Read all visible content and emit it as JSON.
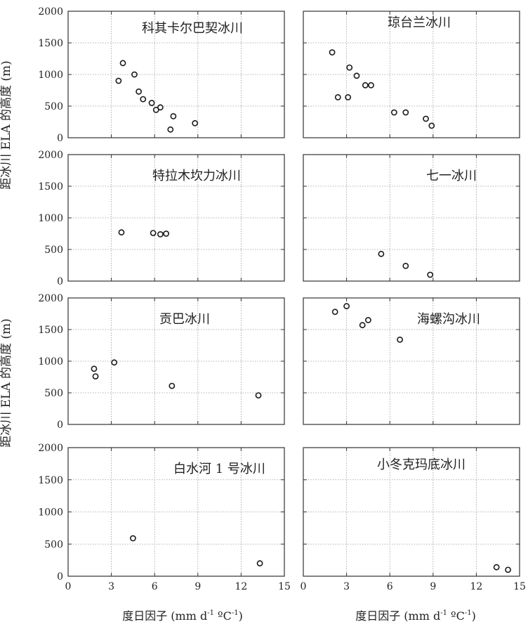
{
  "chart_data": {
    "type": "scatter",
    "ylabel": "距冰川 ELA 的高度 (m)",
    "xlabel": "度日因子 (mm d-1 ºC-1)",
    "xlabel_parts": [
      "度日因子 (mm d",
      "-1",
      " ºC",
      "-1",
      ")"
    ],
    "xlim_left": [
      0,
      15
    ],
    "xlim_right": [
      0,
      15
    ],
    "xticks_left": [
      0,
      3,
      6,
      9,
      12,
      15
    ],
    "xticks_right": [
      0,
      3,
      6,
      9,
      12,
      15
    ],
    "xtick_labels_left": [
      "0",
      "3",
      "6",
      "9",
      "12",
      "15"
    ],
    "xtick_labels_right": [
      "0",
      "3",
      "6",
      "9",
      "12",
      "15"
    ],
    "ylim": [
      0,
      2000
    ],
    "yticks": [
      0,
      500,
      1000,
      1500,
      2000
    ],
    "ytick_labels": [
      "0",
      "500",
      "1000",
      "1500",
      "2000"
    ],
    "grid": true,
    "panels": [
      {
        "title": "科其卡尔巴契冰川",
        "points": [
          [
            3.5,
            900
          ],
          [
            3.8,
            1180
          ],
          [
            4.6,
            1000
          ],
          [
            4.9,
            730
          ],
          [
            5.2,
            610
          ],
          [
            5.8,
            550
          ],
          [
            6.1,
            440
          ],
          [
            6.4,
            480
          ],
          [
            7.1,
            130
          ],
          [
            7.3,
            340
          ],
          [
            8.8,
            230
          ]
        ]
      },
      {
        "title": "琼台兰冰川",
        "points": [
          [
            2.0,
            1350
          ],
          [
            2.4,
            640
          ],
          [
            3.1,
            640
          ],
          [
            3.2,
            1110
          ],
          [
            3.7,
            980
          ],
          [
            4.3,
            830
          ],
          [
            4.7,
            830
          ],
          [
            6.3,
            400
          ],
          [
            7.1,
            400
          ],
          [
            8.5,
            300
          ],
          [
            8.9,
            190
          ]
        ]
      },
      {
        "title": "特拉木坎力冰川",
        "points": [
          [
            3.7,
            770
          ],
          [
            5.9,
            760
          ],
          [
            6.4,
            740
          ],
          [
            6.8,
            750
          ]
        ]
      },
      {
        "title": "七一冰川",
        "points": [
          [
            5.4,
            430
          ],
          [
            7.1,
            240
          ],
          [
            8.8,
            100
          ]
        ]
      },
      {
        "title": "贡巴冰川",
        "points": [
          [
            1.8,
            880
          ],
          [
            1.9,
            760
          ],
          [
            3.2,
            980
          ],
          [
            7.2,
            610
          ],
          [
            13.2,
            460
          ]
        ]
      },
      {
        "title": "海螺沟冰川",
        "points": [
          [
            2.2,
            1780
          ],
          [
            3.0,
            1870
          ],
          [
            4.1,
            1570
          ],
          [
            4.5,
            1650
          ],
          [
            6.7,
            1340
          ]
        ]
      },
      {
        "title": "白水河 1 号冰川",
        "points": [
          [
            4.5,
            590
          ],
          [
            13.3,
            200
          ]
        ]
      },
      {
        "title": "小冬克玛底冰川",
        "points": [
          [
            13.4,
            140
          ],
          [
            14.2,
            100
          ]
        ]
      }
    ]
  }
}
